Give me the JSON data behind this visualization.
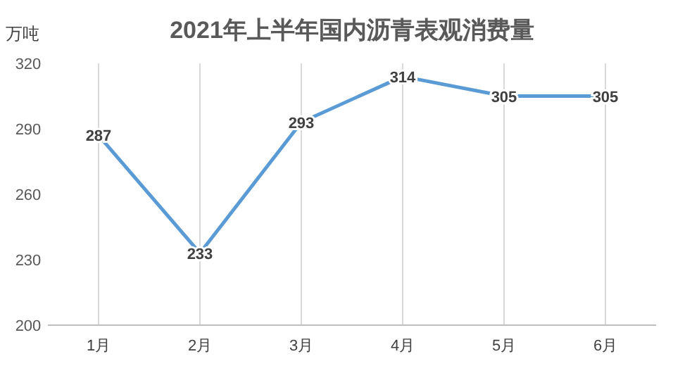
{
  "chart_data": {
    "type": "line",
    "title": "2021年上半年国内沥青表观消费量",
    "ylabel": "万吨",
    "categories": [
      "1月",
      "2月",
      "3月",
      "4月",
      "5月",
      "6月"
    ],
    "series": [
      {
        "color": "#5b9bd5",
        "values": [
          287,
          233,
          293,
          314,
          305,
          305
        ]
      }
    ],
    "ylim": [
      200,
      320
    ],
    "yticks": [
      200,
      230,
      260,
      290,
      320
    ],
    "grid": "x",
    "data_labels": true
  }
}
